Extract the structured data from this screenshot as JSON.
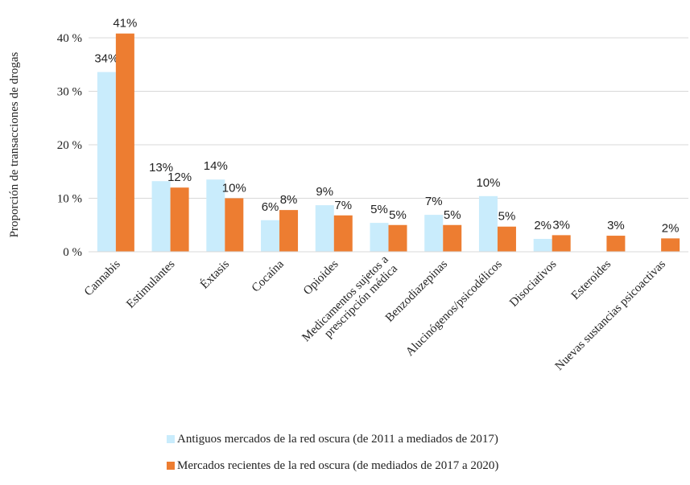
{
  "chart_data": {
    "type": "bar",
    "y_label": "Proporción de transacciones de drogas",
    "categories": [
      "Cannabis",
      "Estimulantes",
      "Éxtasis",
      "Cocaína",
      "Opioides",
      "Medicamentos sujetos a\nprescripción médica",
      "Benzodiazepinas",
      "Alucinógenos/psicodélicos",
      "Disociativos",
      "Esteroides",
      "Nuevas sustancias psicoactivas"
    ],
    "series": [
      {
        "name": "Antiguos mercados de la red oscura (de 2011 a mediados de 2017)",
        "color": "#c9ecfc",
        "values": [
          33.6,
          13.2,
          13.5,
          5.9,
          8.7,
          5.4,
          6.9,
          10.4,
          2.4,
          null,
          null
        ],
        "value_labels": [
          "34%",
          "13%",
          "14%",
          "6%",
          "9%",
          "5%",
          "7%",
          "10%",
          "2%",
          null,
          null
        ]
      },
      {
        "name": "Mercados recientes de la red oscura (de mediados de 2017 a 2020)",
        "color": "#ed7d31",
        "values": [
          40.8,
          12.0,
          10.0,
          7.8,
          6.8,
          5.0,
          5.0,
          4.7,
          3.1,
          3.0,
          2.5
        ],
        "value_labels": [
          "41%",
          "12%",
          "10%",
          "8%",
          "7%",
          "5%",
          "5%",
          "5%",
          "3%",
          "3%",
          "2%"
        ]
      }
    ],
    "ylim": [
      0,
      40
    ],
    "yticks": [
      {
        "value": 0,
        "label": "0 %"
      },
      {
        "value": 10,
        "label": "10 %"
      },
      {
        "value": 20,
        "label": "20 %"
      },
      {
        "value": 30,
        "label": "30 %"
      },
      {
        "value": 40,
        "label": "40 %"
      }
    ],
    "grid": true,
    "legend": "bottom"
  }
}
